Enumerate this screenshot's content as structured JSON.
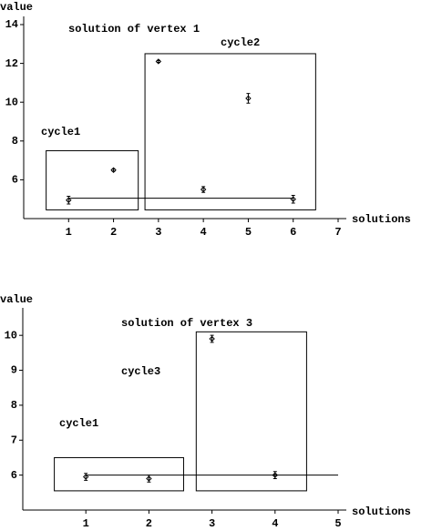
{
  "chart_data": [
    {
      "type": "errorbar",
      "title": "solution of vertex 1",
      "x_label": "solutions",
      "y_label": "value",
      "x": [
        1,
        2,
        3,
        4,
        5,
        6
      ],
      "values": [
        4.95,
        6.5,
        12.1,
        5.5,
        10.2,
        5.0
      ],
      "errors": [
        0.2,
        0.05,
        0.05,
        0.15,
        0.25,
        0.2
      ],
      "xlim": [
        0,
        7
      ],
      "xticks": [
        1,
        2,
        3,
        4,
        5,
        6,
        7
      ],
      "ylim": [
        4,
        14
      ],
      "yticks": [
        6,
        8,
        10,
        12,
        14
      ],
      "reference_line": {
        "x": [
          1,
          6
        ],
        "y": 5.05
      },
      "boxes": [
        {
          "label": "cycle1",
          "x": [
            0.5,
            2.55
          ],
          "y": [
            4.45,
            7.5
          ]
        },
        {
          "label": "cycle2",
          "x": [
            2.7,
            6.5
          ],
          "y": [
            4.45,
            12.5
          ]
        }
      ],
      "color": "#000000"
    },
    {
      "type": "errorbar",
      "title": "solution of vertex 3",
      "x_label": "solutions",
      "y_label": "value",
      "x": [
        1,
        2,
        3,
        4
      ],
      "values": [
        5.95,
        5.9,
        9.9,
        6.0
      ],
      "errors": [
        0.1,
        0.1,
        0.1,
        0.1
      ],
      "xlim": [
        0,
        5
      ],
      "xticks": [
        1,
        2,
        3,
        4,
        5
      ],
      "ylim": [
        5,
        10.5
      ],
      "yticks": [
        6,
        7,
        8,
        9,
        10
      ],
      "reference_line": {
        "x": [
          1,
          5
        ],
        "y": 6.0
      },
      "boxes": [
        {
          "label": "cycle1",
          "x": [
            0.5,
            2.55
          ],
          "y": [
            5.55,
            6.5
          ]
        },
        {
          "label": "cycle3",
          "x": [
            2.75,
            4.5
          ],
          "y": [
            5.55,
            10.1
          ]
        }
      ],
      "color": "#000000"
    }
  ]
}
